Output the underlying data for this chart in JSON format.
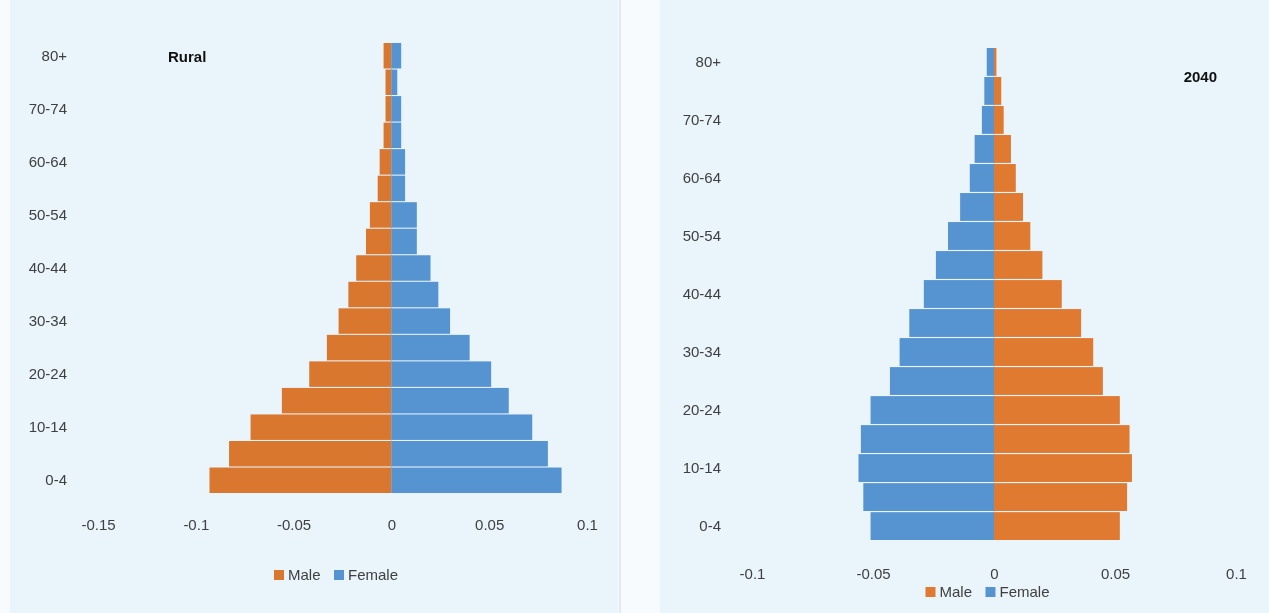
{
  "chart_data": [
    {
      "type": "bar",
      "orientation": "horizontal",
      "title": "Rural",
      "categories": [
        "80+",
        null,
        "70-74",
        null,
        "60-64",
        null,
        "50-54",
        null,
        "40-44",
        null,
        "30-34",
        null,
        "20-24",
        null,
        "10-14",
        null,
        "0-4"
      ],
      "series": [
        {
          "name": "Male",
          "color": "#d9772f",
          "values": [
            -0.004,
            -0.003,
            -0.003,
            -0.004,
            -0.006,
            -0.007,
            -0.011,
            -0.013,
            -0.018,
            -0.022,
            -0.027,
            -0.033,
            -0.042,
            -0.056,
            -0.072,
            -0.083,
            -0.093
          ]
        },
        {
          "name": "Female",
          "color": "#5694d1",
          "values": [
            0.005,
            0.003,
            0.005,
            0.005,
            0.007,
            0.007,
            0.013,
            0.013,
            0.02,
            0.024,
            0.03,
            0.04,
            0.051,
            0.06,
            0.072,
            0.08,
            0.087
          ]
        }
      ],
      "xlim": [
        -0.15,
        0.1
      ],
      "xticks": [
        -0.15,
        -0.1,
        -0.05,
        0,
        0.05,
        0.1
      ],
      "legend": "bottom",
      "stacked": true
    },
    {
      "type": "bar",
      "orientation": "horizontal",
      "title": "2040",
      "categories": [
        "80+",
        null,
        "70-74",
        null,
        "60-64",
        null,
        "50-54",
        null,
        "40-44",
        null,
        "30-34",
        null,
        "20-24",
        null,
        "10-14",
        null,
        "0-4"
      ],
      "series": [
        {
          "name": "Male",
          "color": "#e07a30",
          "values": [
            0.001,
            0.003,
            0.004,
            0.007,
            0.009,
            0.012,
            0.015,
            0.02,
            0.028,
            0.036,
            0.041,
            0.045,
            0.052,
            0.056,
            0.057,
            0.055,
            0.052
          ]
        },
        {
          "name": "Female",
          "color": "#5694d1",
          "values": [
            -0.003,
            -0.004,
            -0.005,
            -0.008,
            -0.01,
            -0.014,
            -0.019,
            -0.024,
            -0.029,
            -0.035,
            -0.039,
            -0.043,
            -0.051,
            -0.055,
            -0.056,
            -0.054,
            -0.051
          ]
        }
      ],
      "xlim": [
        -0.1,
        0.1
      ],
      "xticks": [
        -0.1,
        -0.05,
        0,
        0.05,
        0.1
      ],
      "legend": "bottom",
      "stacked": true
    }
  ]
}
